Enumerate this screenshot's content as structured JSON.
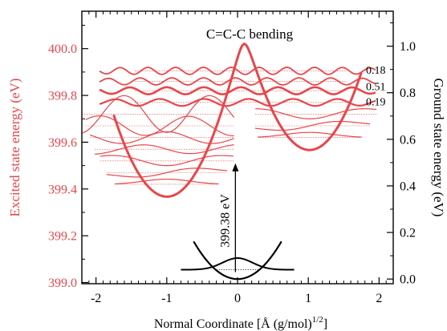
{
  "chart_data": {
    "type": "line",
    "title": "C=C-C bending",
    "xlabel": "Normal Coordinate [Å (g/mol)",
    "xlabel_sup": "1/2",
    "xlabel_close": "]",
    "ylabel_left": "Excited state energy (eV)",
    "ylabel_right": "Ground state energy (eV)",
    "xlim": [
      -2.2,
      2.2
    ],
    "ylim_left": [
      398.995,
      400.16
    ],
    "ylim_right": [
      -0.02,
      1.15
    ],
    "x_ticks": [
      -2,
      -1,
      0,
      1,
      2
    ],
    "x_tick_labels": [
      "-2",
      "-1",
      "0",
      "1",
      "2"
    ],
    "y_left_ticks": [
      399.0,
      399.2,
      399.4,
      399.6,
      399.8,
      400.0
    ],
    "y_left_tick_labels": [
      "399.0",
      "399.2",
      "399.4",
      "399.6",
      "399.8",
      "400.0"
    ],
    "y_right_ticks": [
      0.0,
      0.2,
      0.4,
      0.6,
      0.8,
      1.0
    ],
    "y_right_tick_labels": [
      "0.0",
      "0.2",
      "0.4",
      "0.6",
      "0.8",
      "1.0"
    ],
    "transition_label": "399.38 eV",
    "transition": {
      "x": -0.03,
      "from_right": 0.03,
      "to_left": 399.51
    },
    "ground_state": {
      "x_range": [
        -0.62,
        0.62
      ],
      "center": 0.0,
      "curvature": 0.42,
      "level": 0.04,
      "wavefunction_amplitude": 0.05,
      "wavefunction_range": [
        -0.8,
        0.8
      ]
    },
    "excited_state": {
      "x_range": [
        -1.75,
        1.75
      ],
      "well_left": {
        "center": -1.0,
        "min": 399.37,
        "curvature": 0.62
      },
      "well_right": {
        "center": 1.02,
        "min": 399.57,
        "curvature": 0.62
      },
      "level_spacing": 0.048,
      "levels_left": [
        399.42,
        399.47,
        399.52,
        399.57,
        399.62,
        399.67,
        399.72
      ],
      "levels_right": [
        399.62,
        399.67,
        399.72
      ],
      "delocalized_levels": [
        399.77,
        399.82,
        399.86,
        399.905
      ]
    },
    "annotations": [
      {
        "text": "0.18",
        "y": 399.91
      },
      {
        "text": "0.51",
        "y": 399.84
      },
      {
        "text": "0.19",
        "y": 399.775
      }
    ],
    "colors": {
      "excited": "#e8464a",
      "excited_label": "#e8464a",
      "ground": "#000000",
      "axis": "#000000"
    }
  }
}
